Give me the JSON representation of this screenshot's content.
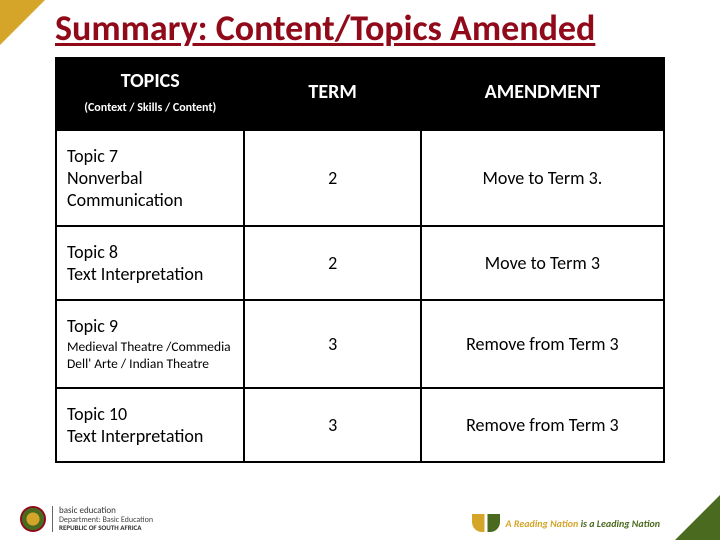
{
  "title": "Summary: Content/Topics Amended",
  "headers": {
    "topics": "TOPICS",
    "topics_sub": "(Context / Skills / Content)",
    "term": "TERM",
    "amendment": "AMENDMENT"
  },
  "rows": [
    {
      "topic_line1": "Topic 7",
      "topic_line2": "Nonverbal",
      "topic_line3": "Communication",
      "term": "2",
      "amendment": "Move to Term 3."
    },
    {
      "topic_line1": "Topic 8",
      "topic_line2": "Text Interpretation",
      "topic_line3": "",
      "term": "2",
      "amendment": "Move to Term 3"
    },
    {
      "topic_line1": "Topic 9",
      "topic_small": "Medieval Theatre /Commedia Dell' Arte / Indian Theatre",
      "term": "3",
      "amendment": "Remove from Term 3"
    },
    {
      "topic_line1": "Topic 10",
      "topic_line2": "Text Interpretation",
      "topic_line3": "",
      "term": "3",
      "amendment": "Remove from Term 3"
    }
  ],
  "footer": {
    "dept1": "basic education",
    "dept2": "Department: Basic Education",
    "dept3": "REPUBLIC OF SOUTH AFRICA",
    "tag1": "A Reading Nation ",
    "tag2": "is a Leading Nation"
  },
  "colors": {
    "title": "#910a1a",
    "header_bg": "#000000",
    "header_fg": "#ffffff",
    "border": "#000000",
    "accent_gold": "#d4a528",
    "accent_green": "#4a6a1f"
  }
}
